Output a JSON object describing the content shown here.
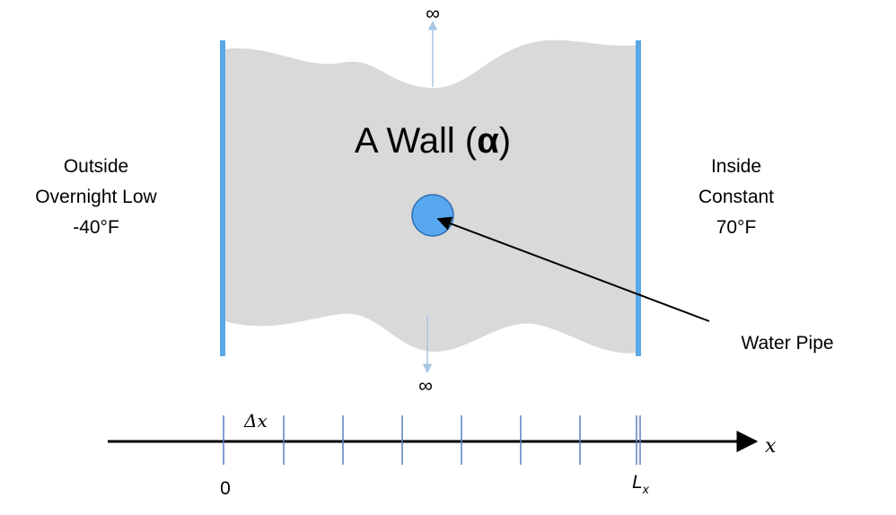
{
  "wall": {
    "title_prefix": "A Wall (",
    "title_symbol": "α",
    "title_suffix": ")"
  },
  "outside": {
    "line1": "Outside",
    "line2": "Overnight Low",
    "line3": "-40°F"
  },
  "inside": {
    "line1": "Inside",
    "line2": "Constant",
    "line3": "70°F"
  },
  "pipe": {
    "label": "Water Pipe"
  },
  "bounds": {
    "top_symbol": "∞",
    "bottom_symbol": "∞"
  },
  "axis": {
    "origin_label": "0",
    "end_label_main": "L",
    "end_label_sub": "x",
    "axis_label": "x",
    "step_label": "Δx"
  },
  "colors": {
    "wall_fill": "#d9d9d9",
    "boundary": "#5aa9e6",
    "pipe_fill": "#57a8ef",
    "pipe_stroke": "#2f6fb5",
    "infinity_arrow": "#a9c5e4",
    "tick": "#5a7fc0",
    "ink": "#000000"
  }
}
